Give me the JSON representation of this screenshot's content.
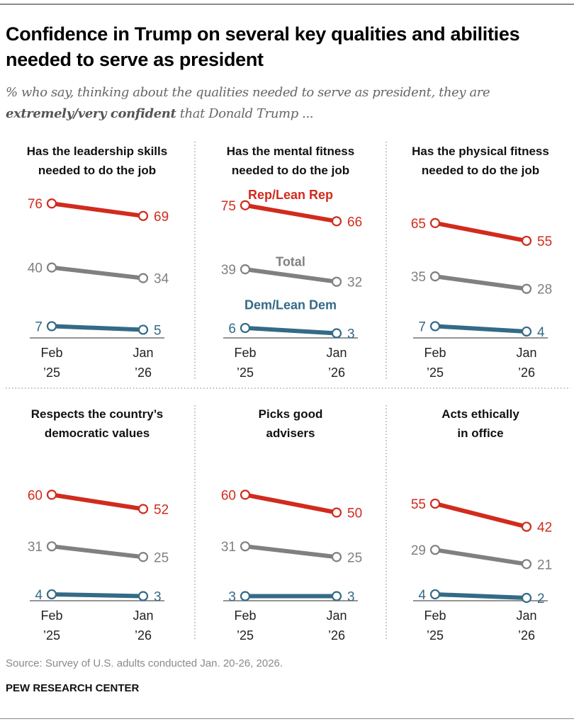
{
  "title": "Confidence in Trump on several key qualities and abilities needed to serve as president",
  "subtitle": {
    "prefix": "% who say, thinking about the qualities needed to serve as president, they are",
    "emphasis": "extremely/very confident",
    "suffix": "that Donald Trump ..."
  },
  "source": "Source: Survey of U.S. adults conducted Jan. 20-26, 2026.",
  "brand": "PEW RESEARCH CENTER",
  "colors": {
    "rep": "#d12b1e",
    "total": "#808080",
    "dem": "#346a87"
  },
  "chart_data": {
    "type": "line",
    "x_categories": [
      [
        "Feb",
        "’25"
      ],
      [
        "Jan",
        "’26"
      ]
    ],
    "series_names": {
      "rep": "Rep/Lean Rep",
      "total": "Total",
      "dem": "Dem/Lean Dem"
    },
    "panels": [
      {
        "title": [
          "Has the leadership skills",
          "needed to do the job"
        ],
        "rep": [
          76,
          69
        ],
        "total": [
          40,
          34
        ],
        "dem": [
          7,
          5
        ]
      },
      {
        "title": [
          "Has the mental fitness",
          "needed to do the job"
        ],
        "rep": [
          75,
          66
        ],
        "total": [
          39,
          32
        ],
        "dem": [
          6,
          3
        ],
        "legend": true
      },
      {
        "title": [
          "Has the physical fitness",
          "needed to do the job"
        ],
        "rep": [
          65,
          55
        ],
        "total": [
          35,
          28
        ],
        "dem": [
          7,
          4
        ]
      },
      {
        "title": [
          "Respects the country’s",
          "democratic values"
        ],
        "rep": [
          60,
          52
        ],
        "total": [
          31,
          25
        ],
        "dem": [
          4,
          3
        ]
      },
      {
        "title": [
          "Picks good",
          "advisers"
        ],
        "rep": [
          60,
          50
        ],
        "total": [
          31,
          25
        ],
        "dem": [
          3,
          3
        ]
      },
      {
        "title": [
          "Acts ethically",
          "in office"
        ],
        "rep": [
          55,
          42
        ],
        "total": [
          29,
          21
        ],
        "dem": [
          4,
          2
        ]
      }
    ]
  }
}
